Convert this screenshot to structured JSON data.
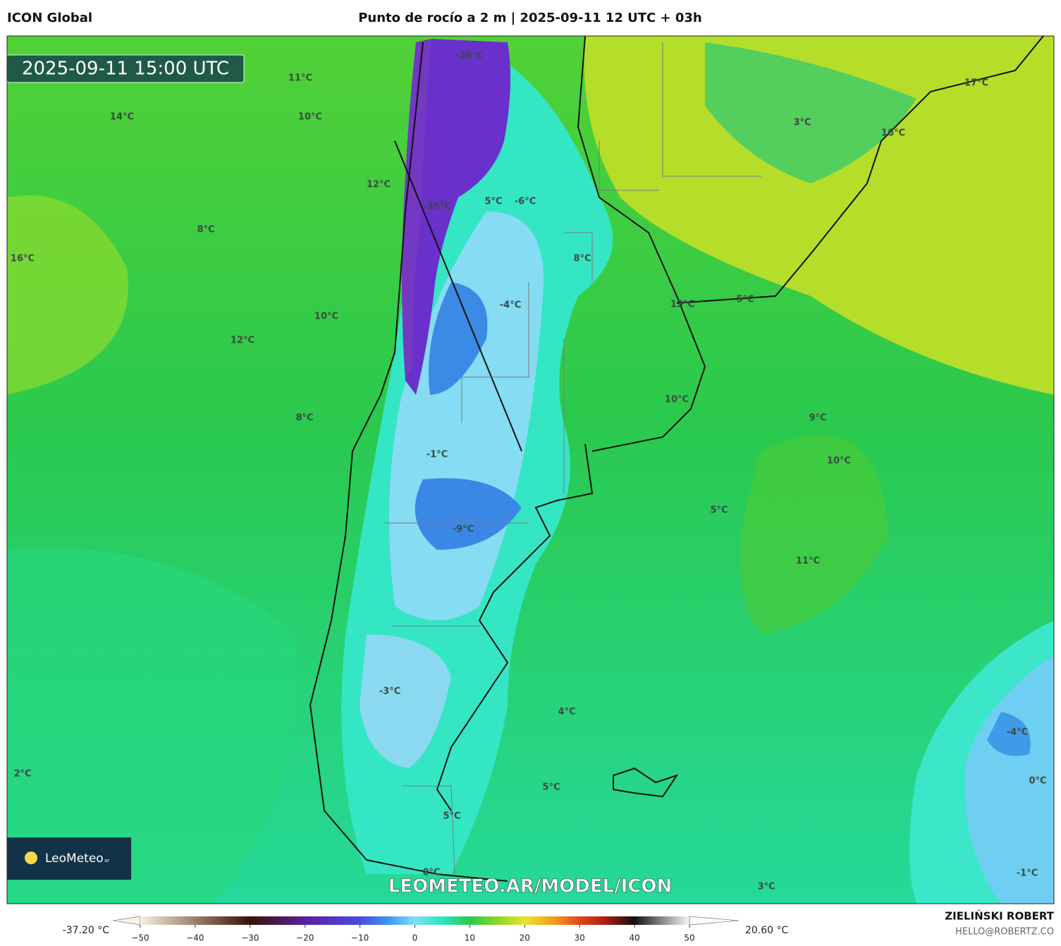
{
  "header": {
    "model": "ICON Global",
    "title": "Punto de rocío a 2 m | 2025-09-11 12 UTC + 03h"
  },
  "map": {
    "timestamp": "2025-09-11 15:00 UTC",
    "logo": {
      "name": "LeoMeteo",
      "suffix": "ar"
    },
    "watermark": "LEOMETEO.AR/MODEL/ICON",
    "labels": [
      "11°C",
      "14°C",
      "10°C",
      "-26°C",
      "17°C",
      "3°C",
      "16°C",
      "12°C",
      "5°C",
      "-6°C",
      "-35°C",
      "8°C",
      "8°C",
      "16°C",
      "-4°C",
      "13°C",
      "5°C",
      "10°C",
      "12°C",
      "10°C",
      "9°C",
      "8°C",
      "-1°C",
      "10°C",
      "5°C",
      "-9°C",
      "11°C",
      "-3°C",
      "4°C",
      "-4°C",
      "2°C",
      "0°C",
      "5°C",
      "5°C",
      "0°C",
      "3°C",
      "-1°C"
    ]
  },
  "colorbar": {
    "min_label": "-37.20 °C",
    "max_label": "20.60 °C",
    "ticks": [
      "−50",
      "−40",
      "−30",
      "−20",
      "−10",
      "0",
      "10",
      "20",
      "30",
      "40",
      "50"
    ]
  },
  "footer": {
    "author": "ZIELIŃSKI ROBERT",
    "contact": "HELLO@ROBERTZ.CO"
  }
}
